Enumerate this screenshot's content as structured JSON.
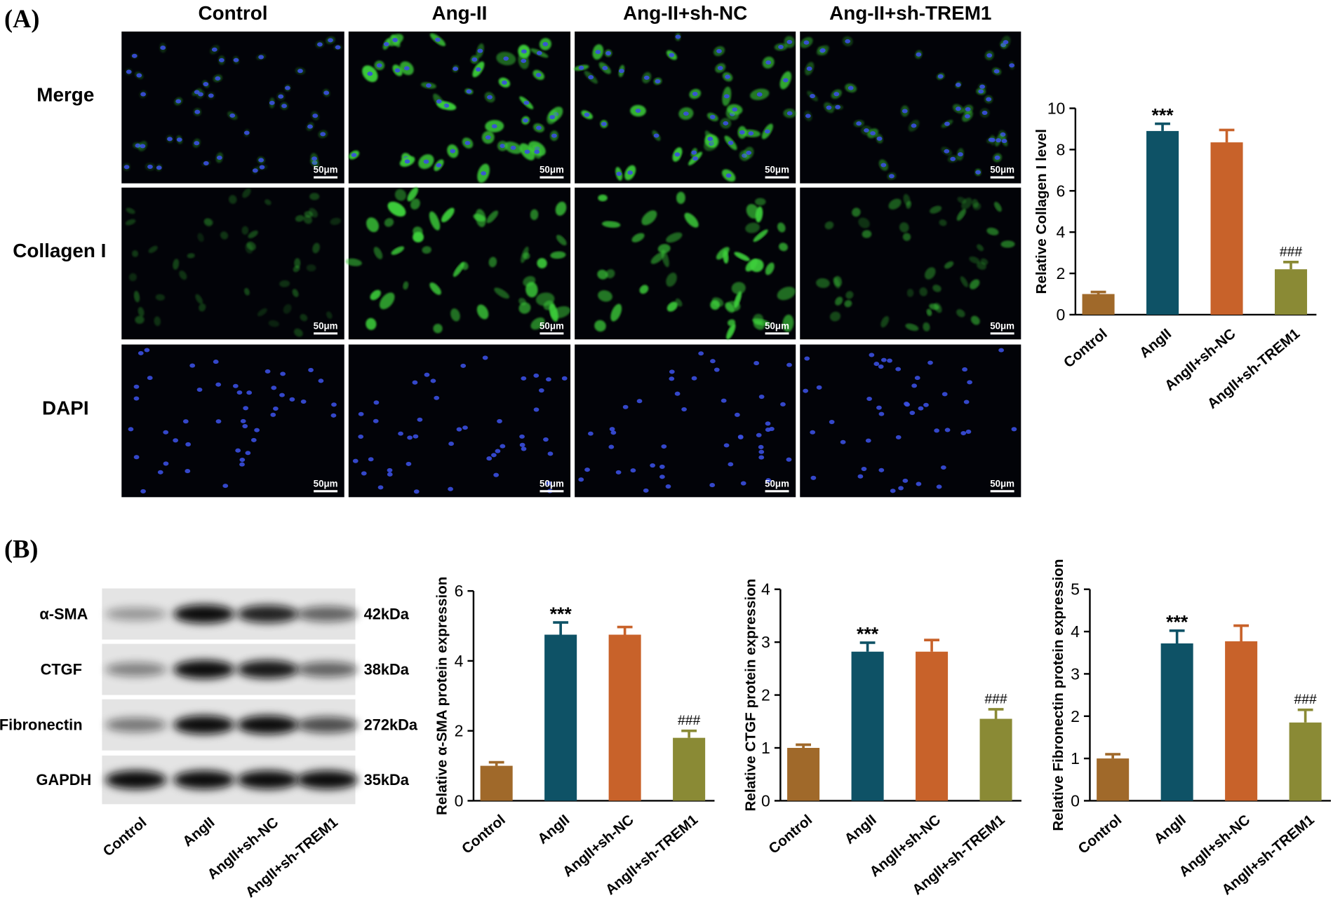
{
  "panel_labels": [
    "(A)",
    "(B)"
  ],
  "image_grid": {
    "columns": [
      "Control",
      "Ang-II",
      "Ang-II+sh-NC",
      "Ang-II+sh-TREM1"
    ],
    "rows": [
      "Merge",
      "Collagen I",
      "DAPI"
    ],
    "scale_bar": "50μm"
  },
  "blot": {
    "proteins": [
      {
        "name": "α-SMA",
        "size": "42kDa"
      },
      {
        "name": "CTGF",
        "size": "38kDa"
      },
      {
        "name": "Fibronectin",
        "size": "272kDa"
      },
      {
        "name": "GAPDH",
        "size": "35kDa"
      }
    ],
    "lanes": [
      "Control",
      "AngII",
      "AngII+sh-NC",
      "AngII+sh-TREM1"
    ]
  },
  "chart_data": [
    {
      "type": "bar",
      "y_label": "Relative Collagen I level",
      "categories": [
        "Control",
        "AngII",
        "AngII+sh-NC",
        "AngII+sh-TREM1"
      ],
      "values": [
        1,
        8.9,
        8.35,
        2.2
      ],
      "errors": [
        0.1,
        0.35,
        0.6,
        0.35
      ],
      "significance": [
        null,
        "***",
        null,
        "###"
      ],
      "colors": [
        "#a0692a",
        "#0e5266",
        "#c8622a",
        "#8a8a35"
      ],
      "ylim": [
        0,
        10
      ],
      "yticks": [
        0,
        2,
        4,
        6,
        8,
        10
      ]
    },
    {
      "type": "bar",
      "y_label": "Relative α-SMA protein expression",
      "categories": [
        "Control",
        "AngII",
        "AngII+sh-NC",
        "AngII+sh-TREM1"
      ],
      "values": [
        1,
        4.75,
        4.75,
        1.8
      ],
      "errors": [
        0.1,
        0.35,
        0.22,
        0.2
      ],
      "significance": [
        null,
        "***",
        null,
        "###"
      ],
      "colors": [
        "#a0692a",
        "#0e5266",
        "#c8622a",
        "#8a8a35"
      ],
      "ylim": [
        0,
        6
      ],
      "yticks": [
        0,
        2,
        4,
        6
      ]
    },
    {
      "type": "bar",
      "y_label": "Relative CTGF protein expression",
      "categories": [
        "Control",
        "AngII",
        "AngII+sh-NC",
        "AngII+sh-TREM1"
      ],
      "values": [
        1,
        2.82,
        2.82,
        1.55
      ],
      "errors": [
        0.06,
        0.17,
        0.22,
        0.18
      ],
      "significance": [
        null,
        "***",
        null,
        "###"
      ],
      "colors": [
        "#a0692a",
        "#0e5266",
        "#c8622a",
        "#8a8a35"
      ],
      "ylim": [
        0,
        4
      ],
      "yticks": [
        0,
        1,
        2,
        3,
        4
      ]
    },
    {
      "type": "bar",
      "y_label": "Relative Fibronectin protein expression",
      "categories": [
        "Control",
        "AngII",
        "AngII+sh-NC",
        "AngII+sh-TREM1"
      ],
      "values": [
        1,
        3.72,
        3.77,
        1.85
      ],
      "errors": [
        0.1,
        0.3,
        0.37,
        0.3
      ],
      "significance": [
        null,
        "***",
        null,
        "###"
      ],
      "colors": [
        "#a0692a",
        "#0e5266",
        "#c8622a",
        "#8a8a35"
      ],
      "ylim": [
        0,
        5
      ],
      "yticks": [
        0,
        1,
        2,
        3,
        4,
        5
      ]
    }
  ]
}
